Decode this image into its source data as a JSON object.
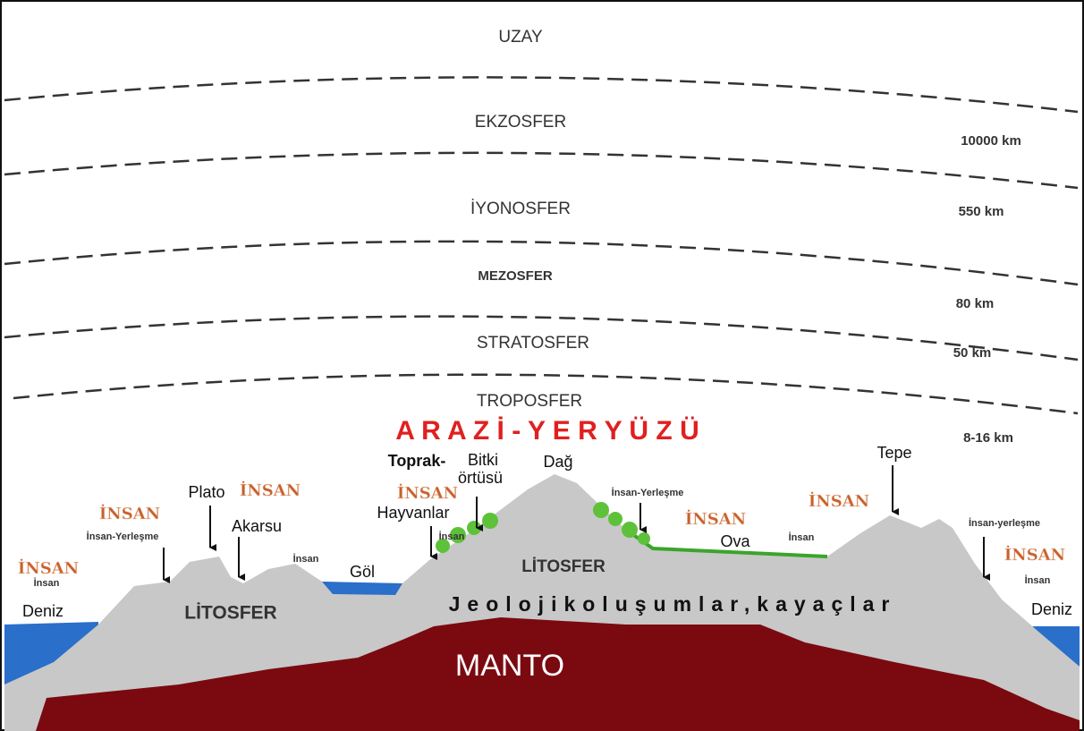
{
  "atmosphere": {
    "layers": [
      "UZAY",
      "EKZOSFER",
      "İYONOSFER",
      "MEZOSFER",
      "STRATOSFER",
      "TROPOSFER"
    ],
    "altitudes": [
      "10000 km",
      "550 km",
      "80 km",
      "50 km",
      "8-16 km"
    ]
  },
  "title": "A R A Z İ - Y E R Y Ü Z Ü",
  "landforms": {
    "plato": "Plato",
    "akarsu": "Akarsu",
    "gol": "Göl",
    "toprak": "Toprak-",
    "bitki_1": "Bitki",
    "bitki_2": "örtüsü",
    "hayvanlar": "Hayvanlar",
    "dag": "Dağ",
    "ova": "Ova",
    "tepe": "Tepe",
    "deniz_left": "Deniz",
    "deniz_right": "Deniz"
  },
  "settlements": [
    "İnsan-Yerleşme",
    "İnsan-Yerleşme",
    "İnsan-yerleşme"
  ],
  "human_big": [
    "İNSAN",
    "İNSAN",
    "İNSAN",
    "İNSAN",
    "İNSAN",
    "İNSAN"
  ],
  "human_small": [
    "İnsan",
    "İnsan",
    "İnsan",
    "İnsan",
    "İnsan"
  ],
  "lithosphere": [
    "LİTOSFER",
    "LİTOSFER"
  ],
  "geology": "Jeolojikoluşumlar,kayaçlar",
  "mantle": "MANTO"
}
